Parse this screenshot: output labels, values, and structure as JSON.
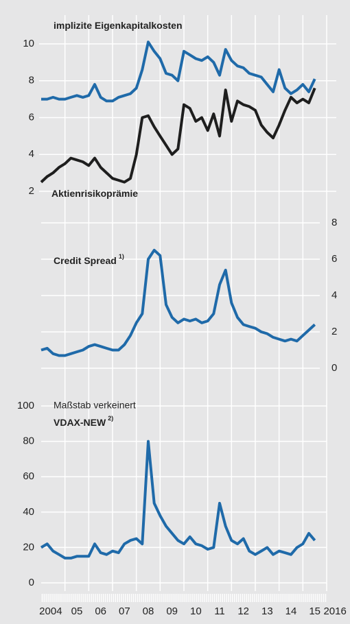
{
  "chart_data": [
    {
      "type": "line",
      "x": [
        2004,
        2004.25,
        2004.5,
        2004.75,
        2005,
        2005.25,
        2005.5,
        2005.75,
        2006,
        2006.25,
        2006.5,
        2006.75,
        2007,
        2007.25,
        2007.5,
        2007.75,
        2008,
        2008.25,
        2008.5,
        2008.75,
        2009,
        2009.25,
        2009.5,
        2009.75,
        2010,
        2010.25,
        2010.5,
        2010.75,
        2011,
        2011.25,
        2011.5,
        2011.75,
        2012,
        2012.25,
        2012.5,
        2012.75,
        2013,
        2013.25,
        2013.5,
        2013.75,
        2014,
        2014.25,
        2014.5,
        2014.75,
        2015,
        2015.25,
        2015.5
      ],
      "xlim": [
        2004,
        2016
      ],
      "series": [
        {
          "name": "implizite Eigenkapitalkosten",
          "color": "#1f6aa9",
          "values": [
            7.0,
            7.0,
            7.1,
            7.0,
            7.0,
            7.1,
            7.2,
            7.1,
            7.2,
            7.8,
            7.1,
            6.9,
            6.9,
            7.1,
            7.2,
            7.3,
            7.6,
            8.6,
            10.1,
            9.6,
            9.2,
            8.4,
            8.3,
            8.0,
            9.6,
            9.4,
            9.2,
            9.1,
            9.3,
            9.0,
            8.3,
            9.7,
            9.1,
            8.8,
            8.7,
            8.4,
            8.3,
            8.2,
            7.8,
            7.4,
            8.6,
            7.6,
            7.3,
            7.5,
            7.8,
            7.4,
            8.1
          ]
        },
        {
          "name": "Aktienrisikoprämie",
          "color": "#1e1e1e",
          "values": [
            2.5,
            2.8,
            3.0,
            3.3,
            3.5,
            3.8,
            3.7,
            3.6,
            3.4,
            3.8,
            3.3,
            3.0,
            2.7,
            2.6,
            2.5,
            2.7,
            4.0,
            6.0,
            6.1,
            5.5,
            5.0,
            4.5,
            4.0,
            4.3,
            6.7,
            6.5,
            5.8,
            6.0,
            5.3,
            6.2,
            5.0,
            7.5,
            5.8,
            6.9,
            6.7,
            6.6,
            6.4,
            5.6,
            5.2,
            4.9,
            5.6,
            6.4,
            7.1,
            6.8,
            7.0,
            6.8,
            7.6
          ]
        }
      ],
      "ylim": [
        2,
        10
      ],
      "yticks": [
        2,
        4,
        6,
        8,
        10
      ],
      "grid": true
    },
    {
      "type": "line",
      "x": [
        2004,
        2004.25,
        2004.5,
        2004.75,
        2005,
        2005.25,
        2005.5,
        2005.75,
        2006,
        2006.25,
        2006.5,
        2006.75,
        2007,
        2007.25,
        2007.5,
        2007.75,
        2008,
        2008.25,
        2008.5,
        2008.75,
        2009,
        2009.25,
        2009.5,
        2009.75,
        2010,
        2010.25,
        2010.5,
        2010.75,
        2011,
        2011.25,
        2011.5,
        2011.75,
        2012,
        2012.25,
        2012.5,
        2012.75,
        2013,
        2013.25,
        2013.5,
        2013.75,
        2014,
        2014.25,
        2014.5,
        2014.75,
        2015,
        2015.25,
        2015.5
      ],
      "xlim": [
        2004,
        2016
      ],
      "series": [
        {
          "name": "Credit Spread",
          "note": "1)",
          "color": "#1f6aa9",
          "axis": "y2",
          "values": [
            1.0,
            1.1,
            0.8,
            0.7,
            0.7,
            0.8,
            0.9,
            1.0,
            1.2,
            1.3,
            1.2,
            1.1,
            1.0,
            1.0,
            1.3,
            1.8,
            2.5,
            3.0,
            6.0,
            6.5,
            6.2,
            3.5,
            2.8,
            2.5,
            2.7,
            2.6,
            2.7,
            2.5,
            2.6,
            3.0,
            4.6,
            5.4,
            3.6,
            2.8,
            2.4,
            2.3,
            2.2,
            2.0,
            1.9,
            1.7,
            1.6,
            1.5,
            1.6,
            1.5,
            1.8,
            2.1,
            2.4
          ]
        }
      ],
      "y2lim": [
        0,
        8
      ],
      "y2ticks": [
        0,
        2,
        4,
        6,
        8
      ],
      "grid": true
    },
    {
      "type": "line",
      "subtitle": "Maßstab verkeinert",
      "x": [
        2004,
        2004.25,
        2004.5,
        2004.75,
        2005,
        2005.25,
        2005.5,
        2005.75,
        2006,
        2006.25,
        2006.5,
        2006.75,
        2007,
        2007.25,
        2007.5,
        2007.75,
        2008,
        2008.25,
        2008.5,
        2008.75,
        2009,
        2009.25,
        2009.5,
        2009.75,
        2010,
        2010.25,
        2010.5,
        2010.75,
        2011,
        2011.25,
        2011.5,
        2011.75,
        2012,
        2012.25,
        2012.5,
        2012.75,
        2013,
        2013.25,
        2013.5,
        2013.75,
        2014,
        2014.25,
        2014.5,
        2014.75,
        2015,
        2015.25,
        2015.5
      ],
      "xlim": [
        2004,
        2016
      ],
      "series": [
        {
          "name": "VDAX-NEW",
          "note": "2)",
          "color": "#1f6aa9",
          "values": [
            20,
            22,
            18,
            16,
            14,
            14,
            15,
            15,
            15,
            22,
            17,
            16,
            18,
            17,
            22,
            24,
            25,
            22,
            80,
            45,
            38,
            32,
            28,
            24,
            22,
            26,
            22,
            21,
            19,
            20,
            45,
            32,
            24,
            22,
            25,
            18,
            16,
            18,
            20,
            16,
            18,
            17,
            16,
            20,
            22,
            28,
            24
          ]
        }
      ],
      "ylim": [
        0,
        100
      ],
      "yticks": [
        0,
        20,
        40,
        60,
        80,
        100
      ],
      "grid": true,
      "xticks": [
        {
          "value": 2004.4,
          "label": "2004"
        },
        {
          "value": 2005.5,
          "label": "05"
        },
        {
          "value": 2006.5,
          "label": "06"
        },
        {
          "value": 2007.5,
          "label": "07"
        },
        {
          "value": 2008.5,
          "label": "08"
        },
        {
          "value": 2009.5,
          "label": "09"
        },
        {
          "value": 2010.5,
          "label": "10"
        },
        {
          "value": 2011.5,
          "label": "11"
        },
        {
          "value": 2012.5,
          "label": "12"
        },
        {
          "value": 2013.5,
          "label": "13"
        },
        {
          "value": 2014.5,
          "label": "14"
        },
        {
          "value": 2015.5,
          "label": "15"
        },
        {
          "value": 2016.35,
          "label": "2016"
        }
      ],
      "xgrid": [
        2005,
        2006,
        2007,
        2008,
        2009,
        2010,
        2011,
        2012,
        2013,
        2014,
        2015,
        2016
      ]
    }
  ]
}
